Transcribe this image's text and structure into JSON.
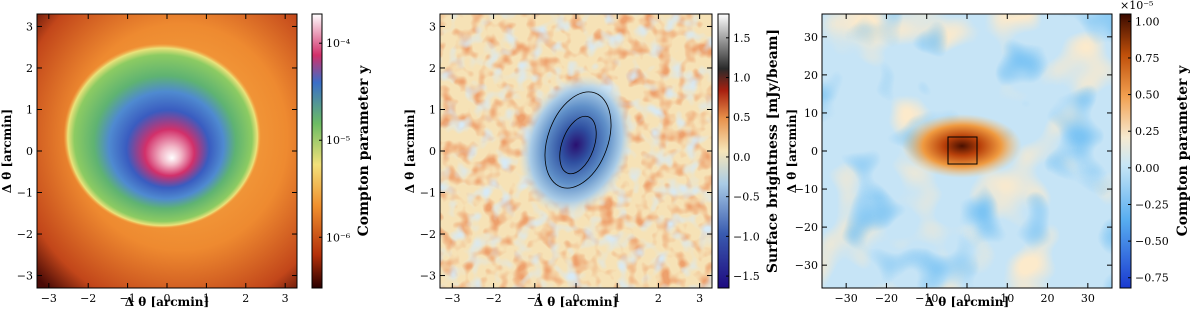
{
  "chart_data": [
    {
      "type": "heatmap",
      "xlabel": "Δ θ [arcmin]",
      "ylabel": "Δ θ [arcmin]",
      "xlim": [
        -3.3,
        3.3
      ],
      "ylim": [
        -3.3,
        3.3
      ],
      "xticks": [
        {
          "value": -3,
          "label": "−3"
        },
        {
          "value": -2,
          "label": "−2"
        },
        {
          "value": -1,
          "label": "−1"
        },
        0,
        1,
        2,
        3
      ],
      "yticks": [
        {
          "value": -3,
          "label": "−3"
        },
        {
          "value": -2,
          "label": "−2"
        },
        {
          "value": -1,
          "label": "−1"
        },
        0,
        1,
        2,
        3
      ],
      "colorbar": {
        "label": "Compton parameter y",
        "log": true,
        "lim": [
          3e-07,
          0.0002
        ],
        "ticks": [
          {
            "value": 1e-06,
            "label": "10⁻⁶"
          },
          {
            "value": 1e-05,
            "label": "10⁻⁵"
          },
          {
            "value": 0.0001,
            "label": "10⁻⁴"
          }
        ]
      }
    },
    {
      "type": "heatmap",
      "xlabel": "Δ θ [arcmin]",
      "ylabel": "Δ θ [arcmin]",
      "xlim": [
        -3.3,
        3.3
      ],
      "ylim": [
        -3.3,
        3.3
      ],
      "xticks": [
        {
          "value": -3,
          "label": "−3"
        },
        {
          "value": -2,
          "label": "−2"
        },
        {
          "value": -1,
          "label": "−1"
        },
        0,
        1,
        2,
        3
      ],
      "yticks": [
        {
          "value": -3,
          "label": "−3"
        },
        {
          "value": -2,
          "label": "−2"
        },
        {
          "value": -1,
          "label": "−1"
        },
        0,
        1,
        2,
        3
      ],
      "colorbar": {
        "label": "Surface brightness [mJy/beam]",
        "log": false,
        "lim": [
          -1.65,
          1.8
        ],
        "ticks": [
          {
            "value": -1.5,
            "label": "−1.5"
          },
          {
            "value": -1,
            "label": "−1.0"
          },
          {
            "value": -0.5,
            "label": "−0.5"
          },
          {
            "value": 0,
            "label": "0.0"
          },
          0.5,
          {
            "value": 1,
            "label": "1.0"
          },
          1.5
        ]
      }
    },
    {
      "type": "heatmap",
      "xlabel": "Δ θ [arcmin]",
      "ylabel": "Δ θ [arcmin]",
      "xlim": [
        -36,
        36
      ],
      "ylim": [
        -36,
        36
      ],
      "xticks": [
        {
          "value": -30,
          "label": "−30"
        },
        {
          "value": -20,
          "label": "−20"
        },
        {
          "value": -10,
          "label": "−10"
        },
        0,
        10,
        20,
        30
      ],
      "yticks": [
        {
          "value": -30,
          "label": "−30"
        },
        {
          "value": -20,
          "label": "−20"
        },
        {
          "value": -10,
          "label": "−10"
        },
        0,
        10,
        20,
        30
      ],
      "colorbar": {
        "label": "Compton parameter y",
        "log": false,
        "lim": [
          -0.82,
          1.05
        ],
        "scale_label": "×10⁻⁵",
        "ticks": [
          {
            "value": -0.75,
            "label": "−0.75"
          },
          {
            "value": -0.5,
            "label": "−0.50"
          },
          {
            "value": -0.25,
            "label": "−0.25"
          },
          {
            "value": 0,
            "label": "0.00"
          },
          {
            "value": 0.25,
            "label": "0.25"
          },
          {
            "value": 0.5,
            "label": "0.50"
          },
          {
            "value": 0.75,
            "label": "0.75"
          },
          {
            "value": 1,
            "label": "1.00"
          }
        ]
      }
    }
  ]
}
